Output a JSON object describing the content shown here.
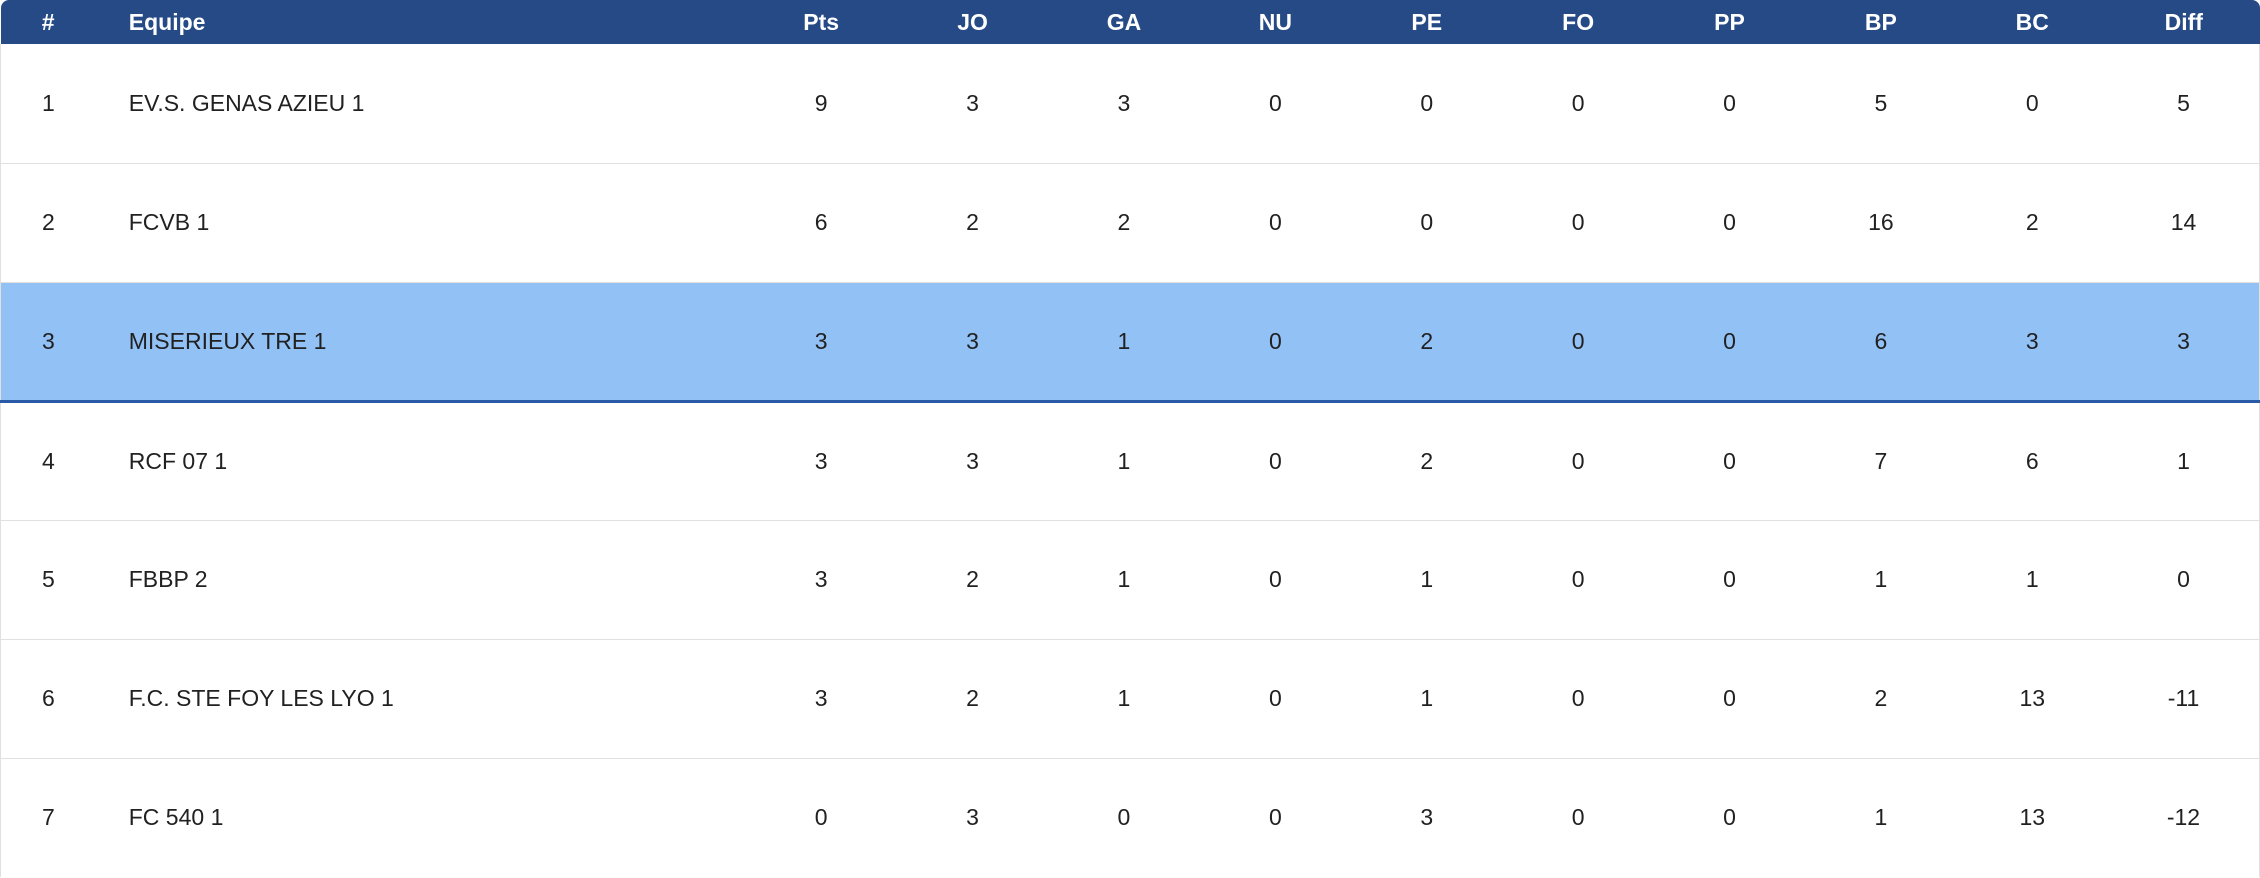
{
  "table": {
    "columns": [
      "#",
      "Equipe",
      "Pts",
      "JO",
      "GA",
      "NU",
      "PE",
      "FO",
      "PP",
      "BP",
      "BC",
      "Diff"
    ],
    "rows": [
      {
        "cells": [
          "1",
          "EV.S. GENAS AZIEU 1",
          "9",
          "3",
          "3",
          "0",
          "0",
          "0",
          "0",
          "5",
          "0",
          "5"
        ],
        "highlighted": false
      },
      {
        "cells": [
          "2",
          "FCVB 1",
          "6",
          "2",
          "2",
          "0",
          "0",
          "0",
          "0",
          "16",
          "2",
          "14"
        ],
        "highlighted": false
      },
      {
        "cells": [
          "3",
          "MISERIEUX TRE 1",
          "3",
          "3",
          "1",
          "0",
          "2",
          "0",
          "0",
          "6",
          "3",
          "3"
        ],
        "highlighted": true
      },
      {
        "cells": [
          "4",
          "RCF 07 1",
          "3",
          "3",
          "1",
          "0",
          "2",
          "0",
          "0",
          "7",
          "6",
          "1"
        ],
        "highlighted": false
      },
      {
        "cells": [
          "5",
          "FBBP 2",
          "3",
          "2",
          "1",
          "0",
          "1",
          "0",
          "0",
          "1",
          "1",
          "0"
        ],
        "highlighted": false
      },
      {
        "cells": [
          "6",
          "F.C. STE FOY LES LYO 1",
          "3",
          "2",
          "1",
          "0",
          "1",
          "0",
          "0",
          "2",
          "13",
          "-11"
        ],
        "highlighted": false
      },
      {
        "cells": [
          "7",
          "FC 540 1",
          "0",
          "3",
          "0",
          "0",
          "3",
          "0",
          "0",
          "1",
          "13",
          "-12"
        ],
        "highlighted": false
      }
    ],
    "highlighted_team": "MISERIEUX TRE 1"
  },
  "colors": {
    "header_bg": "#254a86",
    "header_text": "#ffffff",
    "row_text": "#212121",
    "separator": "#e0e0e0",
    "row_highlight_bg": "#92c1f6",
    "row_highlight_border": "#2a59a5"
  }
}
